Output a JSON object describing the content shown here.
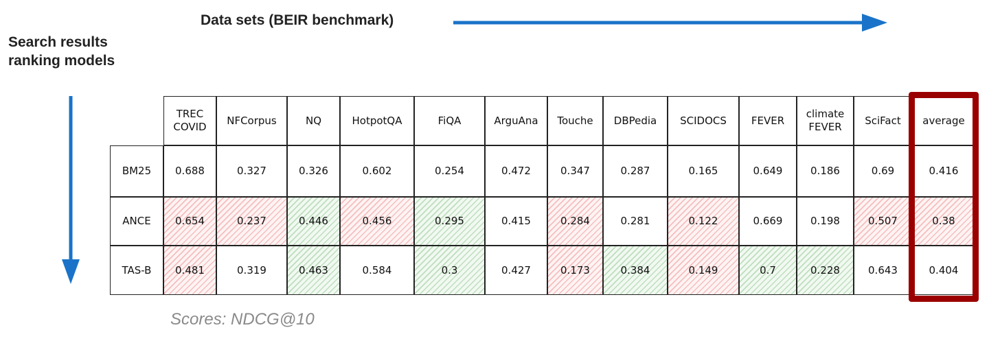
{
  "header": {
    "title": "Data sets (BEIR benchmark)",
    "side_label": "Search results ranking models"
  },
  "table": {
    "columns": [
      "TREC COVID",
      "NFCorpus",
      "NQ",
      "HotpotQA",
      "FiQA",
      "ArguAna",
      "Touche",
      "DBPedia",
      "SCIDOCS",
      "FEVER",
      "climate FEVER",
      "SciFact",
      "average"
    ],
    "rows": [
      {
        "model": "BM25",
        "values": [
          0.688,
          0.327,
          0.326,
          0.602,
          0.254,
          0.472,
          0.347,
          0.287,
          0.165,
          0.649,
          0.186,
          0.69,
          0.416
        ],
        "hatch": [
          null,
          null,
          null,
          null,
          null,
          null,
          null,
          null,
          null,
          null,
          null,
          null,
          null
        ]
      },
      {
        "model": "ANCE",
        "values": [
          0.654,
          0.237,
          0.446,
          0.456,
          0.295,
          0.415,
          0.284,
          0.281,
          0.122,
          0.669,
          0.198,
          0.507,
          0.38
        ],
        "hatch": [
          "red",
          "red",
          "green",
          "red",
          "green",
          null,
          "red",
          null,
          "red",
          null,
          null,
          "red",
          "red"
        ]
      },
      {
        "model": "TAS-B",
        "values": [
          0.481,
          0.319,
          0.463,
          0.584,
          0.3,
          0.427,
          0.173,
          0.384,
          0.149,
          0.7,
          0.228,
          0.643,
          0.404
        ],
        "hatch": [
          "red",
          null,
          "green",
          null,
          "green",
          null,
          "red",
          "green",
          "red",
          "green",
          "green",
          null,
          null
        ]
      }
    ],
    "highlight_column": 12
  },
  "footer": {
    "note": "Scores: NDCG@10"
  }
}
